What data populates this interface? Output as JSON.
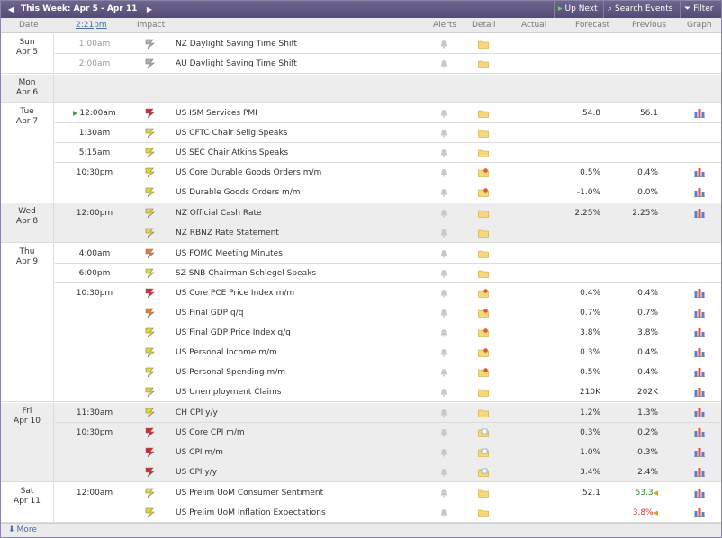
{
  "toolbar": {
    "prev_icon": "arrow-left-icon",
    "next_icon": "arrow-right-icon",
    "week_label": "This Week: Apr 5 - Apr 11",
    "up_next_label": "Up Next",
    "search_label": "Search Events",
    "filter_label": "Filter"
  },
  "columns": {
    "date": "Date",
    "time": "2:21pm",
    "impact": "Impact",
    "alerts": "Alerts",
    "detail": "Detail",
    "actual": "Actual",
    "forecast": "Forecast",
    "previous": "Previous",
    "graph": "Graph"
  },
  "colors": {
    "impact_high": "#d9262c",
    "impact_medium": "#f07c2a",
    "impact_low": "#e8d62e",
    "impact_holiday": "#b0b0b0",
    "better": "#2e8b2e",
    "worse": "#c0392b"
  },
  "days": [
    {
      "day": "Sun",
      "date": "Apr 5",
      "shaded": false,
      "events": [
        {
          "time": "1:00am",
          "time_dim": true,
          "impact": "holiday",
          "name": "NZ Daylight Saving Time Shift",
          "detail": "folder",
          "forecast": "",
          "previous": "",
          "graph": false
        },
        {
          "time": "2:00am",
          "time_dim": true,
          "impact": "holiday",
          "name": "AU Daylight Saving Time Shift",
          "detail": "folder",
          "forecast": "",
          "previous": "",
          "graph": false
        }
      ]
    },
    {
      "day": "Mon",
      "date": "Apr 6",
      "shaded": true,
      "events": []
    },
    {
      "day": "Tue",
      "date": "Apr 7",
      "shaded": false,
      "events": [
        {
          "time": "12:00am",
          "time_dim": false,
          "next": true,
          "impact": "high",
          "name": "US ISM Services PMI",
          "detail": "folder",
          "forecast": "54.8",
          "previous": "56.1",
          "graph": true
        },
        {
          "time": "1:30am",
          "time_dim": false,
          "impact": "low",
          "name": "US CFTC Chair Selig Speaks",
          "detail": "folder",
          "forecast": "",
          "previous": "",
          "graph": false
        },
        {
          "time": "5:15am",
          "time_dim": false,
          "impact": "low",
          "name": "US SEC Chair Atkins Speaks",
          "detail": "folder",
          "forecast": "",
          "previous": "",
          "graph": false
        },
        {
          "time": "10:30pm",
          "time_dim": false,
          "impact": "low",
          "name": "US Core Durable Goods Orders m/m",
          "detail": "folder-star",
          "forecast": "0.5%",
          "previous": "0.4%",
          "graph": true,
          "group_start": true
        },
        {
          "time": "",
          "time_dim": false,
          "impact": "low",
          "name": "US Durable Goods Orders m/m",
          "detail": "folder-star",
          "forecast": "-1.0%",
          "previous": "0.0%",
          "graph": true
        }
      ]
    },
    {
      "day": "Wed",
      "date": "Apr 8",
      "shaded": true,
      "events": [
        {
          "time": "12:00pm",
          "time_dim": false,
          "impact": "low",
          "name": "NZ Official Cash Rate",
          "detail": "folder",
          "forecast": "2.25%",
          "previous": "2.25%",
          "graph": true
        },
        {
          "time": "",
          "time_dim": false,
          "impact": "low",
          "name": "NZ RBNZ Rate Statement",
          "detail": "folder",
          "forecast": "",
          "previous": "",
          "graph": false
        }
      ]
    },
    {
      "day": "Thu",
      "date": "Apr 9",
      "shaded": false,
      "events": [
        {
          "time": "4:00am",
          "time_dim": false,
          "impact": "medium",
          "name": "US FOMC Meeting Minutes",
          "detail": "folder",
          "forecast": "",
          "previous": "",
          "graph": false
        },
        {
          "time": "6:00pm",
          "time_dim": false,
          "impact": "low",
          "name": "SZ SNB Chairman Schlegel Speaks",
          "detail": "folder",
          "forecast": "",
          "previous": "",
          "graph": false
        },
        {
          "time": "10:30pm",
          "time_dim": false,
          "impact": "high",
          "name": "US Core PCE Price Index m/m",
          "detail": "folder-star",
          "forecast": "0.4%",
          "previous": "0.4%",
          "graph": true
        },
        {
          "time": "",
          "time_dim": false,
          "impact": "medium",
          "name": "US Final GDP q/q",
          "detail": "folder-star",
          "forecast": "0.7%",
          "previous": "0.7%",
          "graph": true
        },
        {
          "time": "",
          "time_dim": false,
          "impact": "low",
          "name": "US Final GDP Price Index q/q",
          "detail": "folder-star",
          "forecast": "3.8%",
          "previous": "3.8%",
          "graph": true
        },
        {
          "time": "",
          "time_dim": false,
          "impact": "low",
          "name": "US Personal Income m/m",
          "detail": "folder-star",
          "forecast": "0.3%",
          "previous": "0.4%",
          "graph": true
        },
        {
          "time": "",
          "time_dim": false,
          "impact": "low",
          "name": "US Personal Spending m/m",
          "detail": "folder-star",
          "forecast": "0.5%",
          "previous": "0.4%",
          "graph": true
        },
        {
          "time": "",
          "time_dim": false,
          "impact": "low",
          "name": "US Unemployment Claims",
          "detail": "folder",
          "forecast": "210K",
          "previous": "202K",
          "graph": true
        }
      ]
    },
    {
      "day": "Fri",
      "date": "Apr 10",
      "shaded": true,
      "events": [
        {
          "time": "11:30am",
          "time_dim": false,
          "impact": "low",
          "name": "CH CPI y/y",
          "detail": "folder",
          "forecast": "1.2%",
          "previous": "1.3%",
          "graph": true
        },
        {
          "time": "10:30pm",
          "time_dim": false,
          "impact": "high",
          "name": "US Core CPI m/m",
          "detail": "folder-doc",
          "forecast": "0.3%",
          "previous": "0.2%",
          "graph": true
        },
        {
          "time": "",
          "time_dim": false,
          "impact": "high",
          "name": "US CPI m/m",
          "detail": "folder-doc",
          "forecast": "1.0%",
          "previous": "0.3%",
          "graph": true
        },
        {
          "time": "",
          "time_dim": false,
          "impact": "high",
          "name": "US CPI y/y",
          "detail": "folder-doc",
          "forecast": "3.4%",
          "previous": "2.4%",
          "graph": true
        }
      ]
    },
    {
      "day": "Sat",
      "date": "Apr 11",
      "shaded": false,
      "events": [
        {
          "time": "12:00am",
          "time_dim": false,
          "impact": "low",
          "name": "US Prelim UoM Consumer Sentiment",
          "detail": "folder",
          "forecast": "52.1",
          "previous": "53.3",
          "previous_color": "better",
          "graph": true
        },
        {
          "time": "",
          "time_dim": false,
          "impact": "low",
          "name": "US Prelim UoM Inflation Expectations",
          "detail": "folder",
          "forecast": "",
          "previous": "3.8%",
          "previous_color": "worse",
          "graph": true
        }
      ]
    }
  ],
  "footer": {
    "more_label": "More",
    "more_icon": "arrow-down-icon"
  }
}
